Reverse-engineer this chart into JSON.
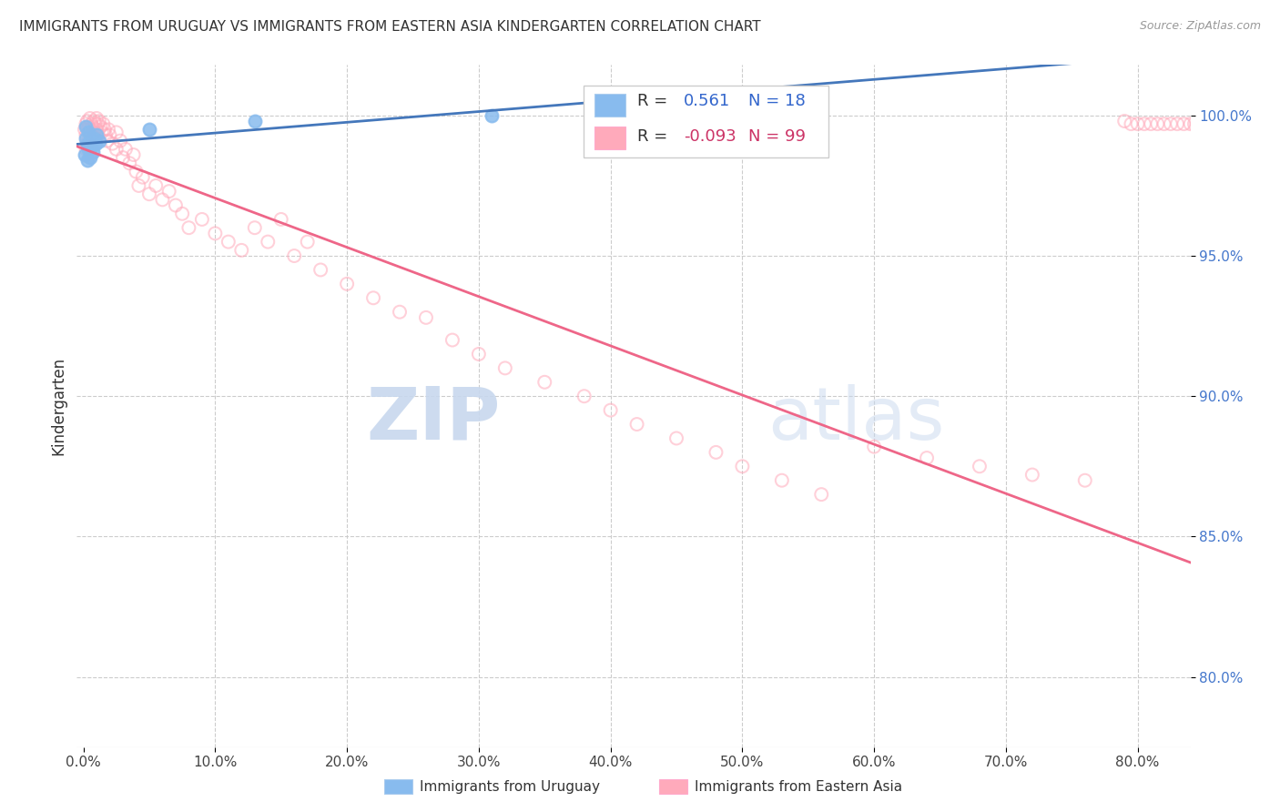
{
  "title": "IMMIGRANTS FROM URUGUAY VS IMMIGRANTS FROM EASTERN ASIA KINDERGARTEN CORRELATION CHART",
  "source": "Source: ZipAtlas.com",
  "ylabel": "Kindergarten",
  "ytick_labels": [
    "80.0%",
    "85.0%",
    "90.0%",
    "95.0%",
    "100.0%"
  ],
  "ytick_values": [
    0.8,
    0.85,
    0.9,
    0.95,
    1.0
  ],
  "xtick_values": [
    0.0,
    0.1,
    0.2,
    0.3,
    0.4,
    0.5,
    0.6,
    0.7,
    0.8
  ],
  "xlim": [
    -0.005,
    0.84
  ],
  "ylim": [
    0.775,
    1.018
  ],
  "r_uruguay": 0.561,
  "n_uruguay": 18,
  "r_eastern_asia": -0.093,
  "n_eastern_asia": 99,
  "color_uruguay": "#88bbee",
  "color_eastern_asia": "#ffaabb",
  "line_color_uruguay": "#4477bb",
  "line_color_eastern_asia": "#ee6688",
  "legend_label_uruguay": "Immigrants from Uruguay",
  "legend_label_eastern_asia": "Immigrants from Eastern Asia",
  "watermark_zip": "ZIP",
  "watermark_atlas": "atlas",
  "background_color": "#ffffff",
  "grid_color": "#cccccc",
  "uruguay_x": [
    0.001,
    0.002,
    0.002,
    0.003,
    0.003,
    0.004,
    0.004,
    0.005,
    0.005,
    0.006,
    0.007,
    0.008,
    0.009,
    0.01,
    0.012,
    0.05,
    0.13,
    0.31
  ],
  "uruguay_y": [
    0.986,
    0.992,
    0.996,
    0.984,
    0.99,
    0.988,
    0.994,
    0.985,
    0.991,
    0.989,
    0.987,
    0.992,
    0.99,
    0.993,
    0.991,
    0.995,
    0.998,
    1.0
  ],
  "eastern_asia_x": [
    0.001,
    0.002,
    0.002,
    0.002,
    0.003,
    0.003,
    0.003,
    0.004,
    0.004,
    0.005,
    0.005,
    0.005,
    0.006,
    0.006,
    0.007,
    0.007,
    0.008,
    0.008,
    0.009,
    0.009,
    0.01,
    0.01,
    0.011,
    0.011,
    0.012,
    0.013,
    0.014,
    0.015,
    0.016,
    0.017,
    0.018,
    0.019,
    0.02,
    0.022,
    0.025,
    0.025,
    0.028,
    0.03,
    0.032,
    0.035,
    0.038,
    0.04,
    0.042,
    0.045,
    0.05,
    0.055,
    0.06,
    0.065,
    0.07,
    0.075,
    0.08,
    0.09,
    0.1,
    0.11,
    0.12,
    0.13,
    0.14,
    0.15,
    0.16,
    0.17,
    0.18,
    0.2,
    0.22,
    0.24,
    0.26,
    0.28,
    0.3,
    0.32,
    0.35,
    0.38,
    0.4,
    0.42,
    0.45,
    0.48,
    0.5,
    0.53,
    0.56,
    0.6,
    0.64,
    0.68,
    0.72,
    0.76,
    0.79,
    0.795,
    0.8,
    0.805,
    0.81,
    0.815,
    0.82,
    0.825,
    0.83,
    0.835,
    0.84,
    0.843,
    0.845,
    0.848,
    0.85,
    0.855,
    0.86
  ],
  "eastern_asia_y": [
    0.995,
    0.997,
    0.993,
    0.988,
    0.998,
    0.995,
    0.99,
    0.996,
    0.992,
    0.999,
    0.995,
    0.989,
    0.997,
    0.993,
    0.996,
    0.991,
    0.998,
    0.994,
    0.997,
    0.992,
    0.999,
    0.995,
    0.997,
    0.993,
    0.998,
    0.996,
    0.994,
    0.997,
    0.995,
    0.993,
    0.991,
    0.995,
    0.993,
    0.99,
    0.994,
    0.988,
    0.991,
    0.985,
    0.988,
    0.983,
    0.986,
    0.98,
    0.975,
    0.978,
    0.972,
    0.975,
    0.97,
    0.973,
    0.968,
    0.965,
    0.96,
    0.963,
    0.958,
    0.955,
    0.952,
    0.96,
    0.955,
    0.963,
    0.95,
    0.955,
    0.945,
    0.94,
    0.935,
    0.93,
    0.928,
    0.92,
    0.915,
    0.91,
    0.905,
    0.9,
    0.895,
    0.89,
    0.885,
    0.88,
    0.875,
    0.87,
    0.865,
    0.882,
    0.878,
    0.875,
    0.872,
    0.87,
    0.998,
    0.997,
    0.997,
    0.997,
    0.997,
    0.997,
    0.997,
    0.997,
    0.997,
    0.997,
    0.997,
    0.997,
    0.997,
    0.997,
    0.997,
    0.997,
    0.997
  ]
}
